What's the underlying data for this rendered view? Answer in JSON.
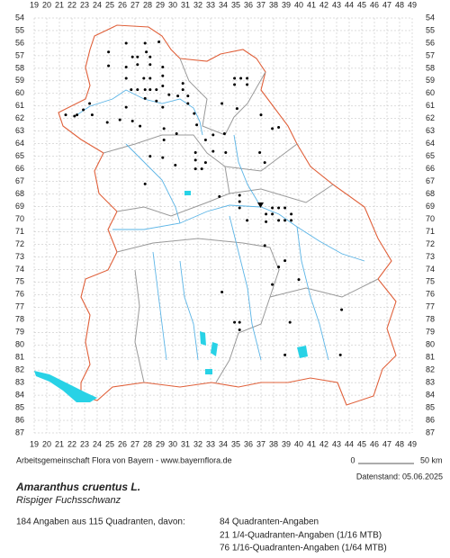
{
  "map": {
    "columns": [
      19,
      20,
      21,
      22,
      23,
      24,
      25,
      26,
      27,
      28,
      29,
      30,
      31,
      32,
      33,
      34,
      35,
      36,
      37,
      38,
      39,
      40,
      41,
      42,
      43,
      44,
      45,
      46,
      47,
      48,
      49
    ],
    "rows": [
      54,
      55,
      56,
      57,
      58,
      59,
      60,
      61,
      62,
      63,
      64,
      65,
      66,
      67,
      68,
      69,
      70,
      71,
      72,
      73,
      74,
      75,
      76,
      77,
      78,
      79,
      80,
      81,
      82,
      83,
      84,
      85,
      86,
      87
    ],
    "occurrences": [
      [
        26.3,
        56.0
      ],
      [
        27.8,
        56.0
      ],
      [
        28.9,
        55.9
      ],
      [
        24.9,
        56.7
      ],
      [
        26.8,
        57.1
      ],
      [
        27.2,
        57.1
      ],
      [
        27.9,
        56.7
      ],
      [
        28.2,
        57.1
      ],
      [
        24.9,
        57.8
      ],
      [
        26.3,
        57.9
      ],
      [
        27.2,
        57.7
      ],
      [
        28.2,
        57.7
      ],
      [
        29.2,
        57.9
      ],
      [
        26.3,
        58.8
      ],
      [
        27.7,
        58.8
      ],
      [
        28.2,
        58.8
      ],
      [
        29.2,
        58.6
      ],
      [
        26.7,
        59.7
      ],
      [
        27.2,
        59.7
      ],
      [
        27.8,
        59.7
      ],
      [
        28.2,
        59.7
      ],
      [
        28.7,
        59.7
      ],
      [
        29.2,
        59.4
      ],
      [
        29.7,
        60.1
      ],
      [
        30.4,
        60.2
      ],
      [
        30.8,
        59.2
      ],
      [
        31.2,
        60.2
      ],
      [
        30.8,
        59.7
      ],
      [
        27.8,
        60.4
      ],
      [
        28.7,
        60.6
      ],
      [
        29.2,
        61.1
      ],
      [
        26.3,
        61.1
      ],
      [
        31.2,
        60.8
      ],
      [
        31.7,
        61.6
      ],
      [
        34.9,
        58.8
      ],
      [
        35.4,
        58.8
      ],
      [
        35.9,
        58.8
      ],
      [
        34.9,
        59.3
      ],
      [
        35.9,
        59.3
      ],
      [
        33.9,
        60.8
      ],
      [
        35.1,
        61.2
      ],
      [
        37.0,
        61.7
      ],
      [
        21.5,
        61.7
      ],
      [
        22.4,
        61.7
      ],
      [
        22.9,
        61.3
      ],
      [
        23.4,
        60.8
      ],
      [
        23.6,
        61.7
      ],
      [
        22.2,
        61.8
      ],
      [
        24.8,
        62.3
      ],
      [
        25.8,
        62.1
      ],
      [
        26.8,
        62.2
      ],
      [
        27.4,
        62.6
      ],
      [
        29.3,
        62.8
      ],
      [
        31.9,
        62.5
      ],
      [
        29.3,
        63.7
      ],
      [
        30.3,
        63.2
      ],
      [
        32.6,
        63.7
      ],
      [
        33.2,
        63.3
      ],
      [
        34.1,
        63.2
      ],
      [
        37.9,
        62.8
      ],
      [
        38.4,
        62.7
      ],
      [
        28.2,
        65.0
      ],
      [
        29.2,
        65.1
      ],
      [
        31.8,
        64.7
      ],
      [
        31.8,
        65.3
      ],
      [
        33.2,
        64.6
      ],
      [
        34.2,
        64.7
      ],
      [
        36.9,
        64.7
      ],
      [
        30.2,
        65.7
      ],
      [
        31.8,
        66.0
      ],
      [
        32.3,
        66.0
      ],
      [
        32.6,
        65.5
      ],
      [
        37.3,
        65.5
      ],
      [
        27.8,
        67.2
      ],
      [
        33.7,
        68.2
      ],
      [
        35.3,
        68.1
      ],
      [
        35.3,
        68.6
      ],
      [
        35.3,
        69.1
      ],
      [
        37.9,
        69.1
      ],
      [
        38.4,
        69.1
      ],
      [
        38.9,
        69.1
      ],
      [
        37.4,
        69.6
      ],
      [
        37.9,
        69.6
      ],
      [
        38.4,
        70.1
      ],
      [
        38.9,
        70.1
      ],
      [
        35.9,
        70.1
      ],
      [
        37.4,
        70.2
      ],
      [
        39.4,
        70.1
      ],
      [
        39.4,
        69.6
      ],
      [
        37.3,
        72.1
      ],
      [
        38.9,
        73.3
      ],
      [
        38.4,
        73.8
      ],
      [
        37.9,
        75.2
      ],
      [
        40.0,
        74.8
      ],
      [
        33.9,
        75.8
      ],
      [
        43.4,
        77.2
      ],
      [
        34.9,
        78.2
      ],
      [
        35.3,
        78.2
      ],
      [
        35.3,
        78.8
      ],
      [
        39.3,
        78.2
      ],
      [
        38.9,
        80.8
      ],
      [
        43.3,
        80.8
      ]
    ]
  },
  "footer": {
    "credit": "Arbeitsgemeinschaft Flora von Bayern - www.bayernflora.de",
    "scale_start": "0",
    "scale_end": "50 km",
    "date": "Datenstand: 05.06.2025"
  },
  "species": {
    "name": "Amaranthus cruentus L.",
    "common_name": "Rispiger Fuchsschwanz"
  },
  "stats": {
    "summary": "184 Angaben aus 115 Quadranten, davon:",
    "lines": [
      "84 Quadranten-Angaben",
      "21 1/4-Quadranten-Angaben (1/16 MTB)",
      "76 1/16-Quadranten-Angaben (1/64 MTB)"
    ]
  }
}
